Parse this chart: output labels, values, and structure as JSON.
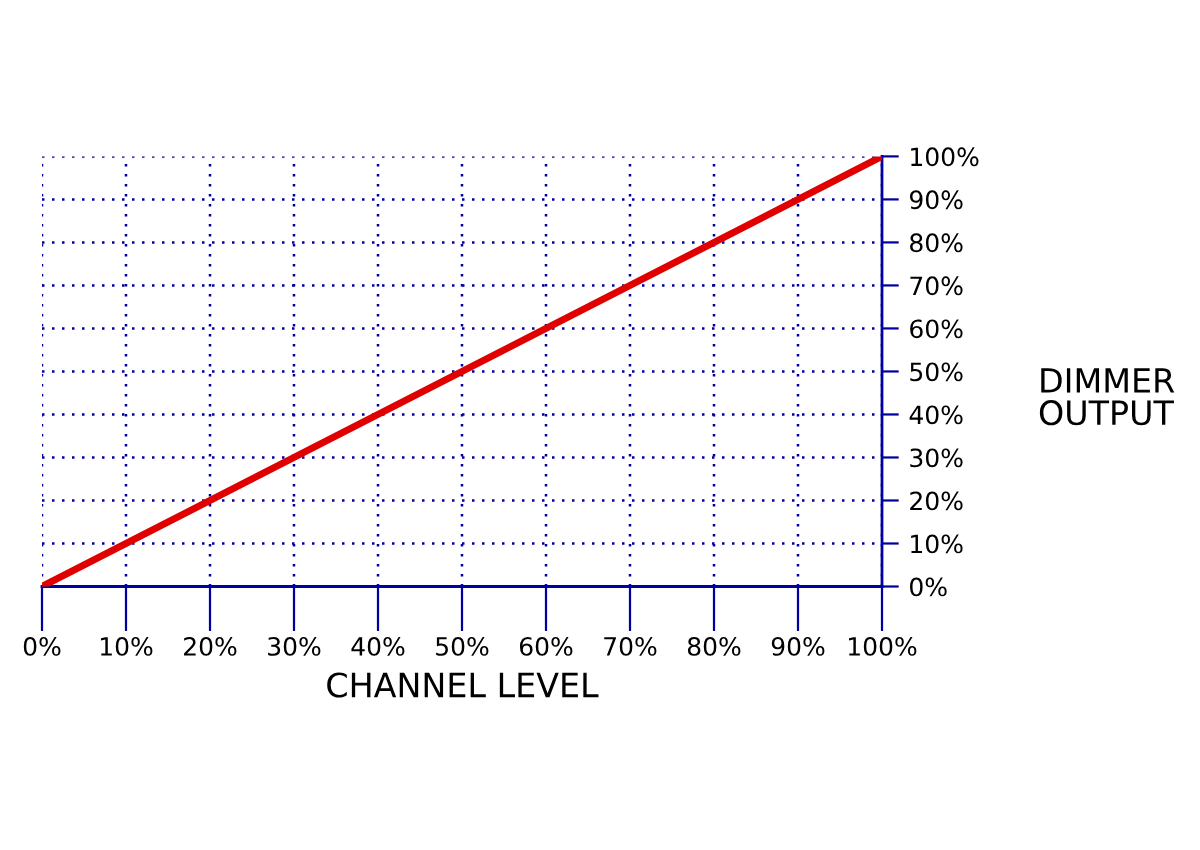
{
  "chart_data": {
    "type": "line",
    "xlabel": "CHANNEL LEVEL",
    "ylabel": "DIMMER\nOUTPUT",
    "x": [
      0,
      100
    ],
    "series": [
      {
        "color": "#e00000",
        "values": [
          0,
          100
        ]
      }
    ],
    "xlim": [
      0,
      100
    ],
    "ylim": [
      0,
      100
    ],
    "xticks": [
      {
        "value": 0,
        "label": "0%"
      },
      {
        "value": 10,
        "label": "10%"
      },
      {
        "value": 20,
        "label": "20%"
      },
      {
        "value": 30,
        "label": "30%"
      },
      {
        "value": 40,
        "label": "40%"
      },
      {
        "value": 50,
        "label": "50%"
      },
      {
        "value": 60,
        "label": "60%"
      },
      {
        "value": 70,
        "label": "70%"
      },
      {
        "value": 80,
        "label": "80%"
      },
      {
        "value": 90,
        "label": "90%"
      },
      {
        "value": 100,
        "label": "100%"
      }
    ],
    "yticks": [
      {
        "value": 0,
        "label": "0%"
      },
      {
        "value": 10,
        "label": "10%"
      },
      {
        "value": 20,
        "label": "20%"
      },
      {
        "value": 30,
        "label": "30%"
      },
      {
        "value": 40,
        "label": "40%"
      },
      {
        "value": 50,
        "label": "50%"
      },
      {
        "value": 60,
        "label": "60%"
      },
      {
        "value": 70,
        "label": "70%"
      },
      {
        "value": 80,
        "label": "80%"
      },
      {
        "value": 90,
        "label": "90%"
      },
      {
        "value": 100,
        "label": "100%"
      }
    ],
    "grid": true,
    "marker": "none",
    "line_style": "solid",
    "legend": false
  }
}
